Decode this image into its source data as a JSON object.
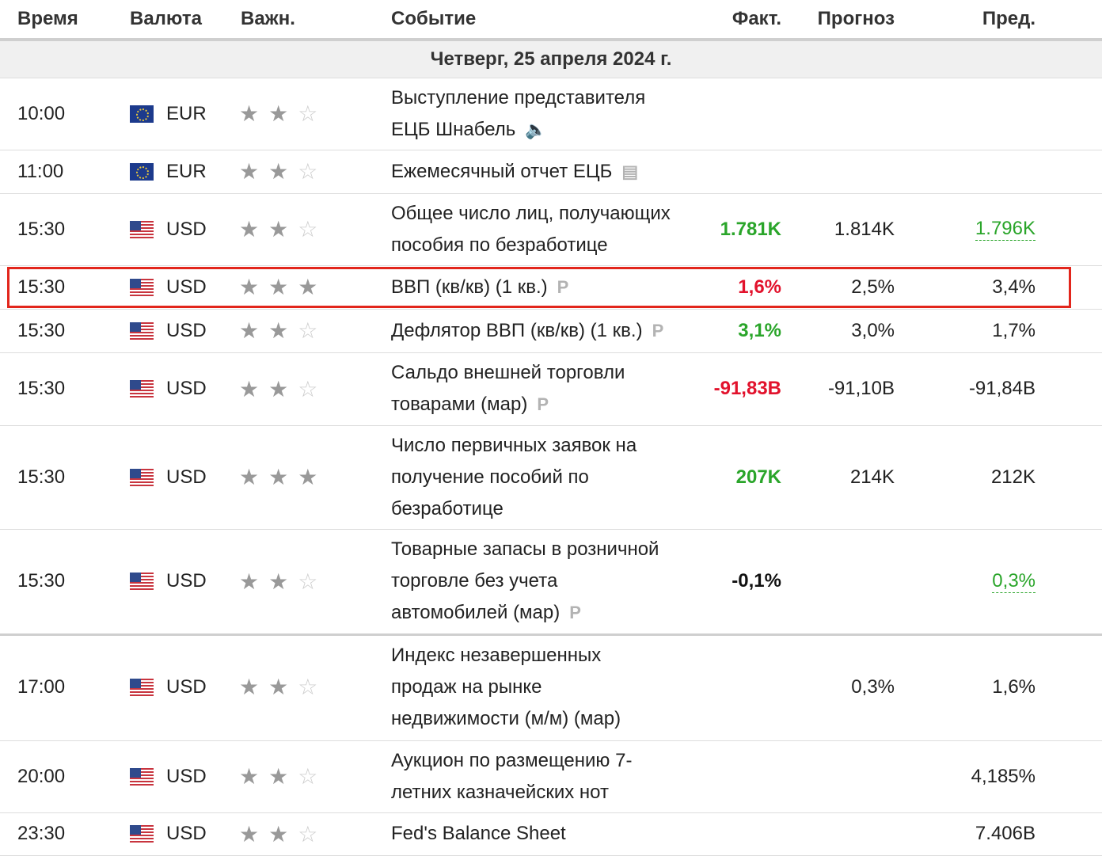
{
  "header": {
    "time": "Время",
    "currency": "Валюта",
    "importance": "Важн.",
    "event": "Событие",
    "actual": "Факт.",
    "forecast": "Прогноз",
    "previous": "Пред."
  },
  "date_label": "Четверг, 25 апреля 2024 г.",
  "rows": [
    {
      "time": "10:00",
      "currency": "EUR",
      "flag": "eu-flag",
      "stars": 2,
      "event_lines": [
        "Выступление представителя",
        "ЕЦБ Шнабель"
      ],
      "event_icon": "speaker-icon",
      "actual": "",
      "forecast": "",
      "previous": ""
    },
    {
      "time": "11:00",
      "currency": "EUR",
      "flag": "eu-flag",
      "stars": 2,
      "event_lines": [
        "Ежемесячный отчет ЕЦБ"
      ],
      "event_icon": "report-icon",
      "actual": "",
      "forecast": "",
      "previous": ""
    },
    {
      "time": "15:30",
      "currency": "USD",
      "flag": "us-flag",
      "stars": 2,
      "event_lines": [
        "Общее число лиц, получающих",
        "пособия по безработице"
      ],
      "event_icon": "",
      "actual": "1.781K",
      "actual_color": "#2aa52a",
      "forecast": "1.814K",
      "previous": "1.796K",
      "previous_color": "#2aa52a"
    },
    {
      "time": "15:30",
      "currency": "USD",
      "flag": "us-flag",
      "stars": 3,
      "event_lines": [
        "ВВП (кв/кв) (1 кв.)"
      ],
      "event_icon": "preliminary-icon",
      "actual": "1,6%",
      "actual_color": "#e2122c",
      "forecast": "2,5%",
      "previous": "3,4%"
    },
    {
      "time": "15:30",
      "currency": "USD",
      "flag": "us-flag",
      "stars": 2,
      "event_lines": [
        "Дефлятор ВВП (кв/кв) (1 кв.)"
      ],
      "event_icon": "preliminary-icon",
      "actual": "3,1%",
      "actual_color": "#2aa52a",
      "forecast": "3,0%",
      "previous": "1,7%"
    },
    {
      "time": "15:30",
      "currency": "USD",
      "flag": "us-flag",
      "stars": 2,
      "event_lines": [
        "Сальдо внешней торговли",
        "товарами (мар)"
      ],
      "event_icon": "preliminary-icon",
      "actual": "-91,83B",
      "actual_color": "#e2122c",
      "forecast": "-91,10B",
      "previous": "-91,84B"
    },
    {
      "time": "15:30",
      "currency": "USD",
      "flag": "us-flag",
      "stars": 3,
      "event_lines": [
        "Число первичных заявок на",
        "получение пособий по",
        "безработице"
      ],
      "event_icon": "",
      "actual": "207K",
      "actual_color": "#2aa52a",
      "forecast": "214K",
      "previous": "212K"
    },
    {
      "time": "15:30",
      "currency": "USD",
      "flag": "us-flag",
      "stars": 2,
      "event_lines": [
        "Товарные запасы в розничной",
        "торговле без учета",
        "автомобилей (мар)"
      ],
      "event_icon": "preliminary-icon",
      "actual": "-0,1%",
      "actual_color": "#111111",
      "forecast": "",
      "previous": "0,3%",
      "previous_color": "#2aa52a"
    },
    {
      "time": "17:00",
      "currency": "USD",
      "flag": "us-flag",
      "stars": 2,
      "event_lines": [
        "Индекс незавершенных",
        "продаж на рынке",
        "недвижимости (м/м) (мар)"
      ],
      "event_icon": "",
      "actual": "",
      "forecast": "0,3%",
      "previous": "1,6%"
    },
    {
      "time": "20:00",
      "currency": "USD",
      "flag": "us-flag",
      "stars": 2,
      "event_lines": [
        "Аукцион по размещению 7-",
        "летних казначейских нот"
      ],
      "event_icon": "",
      "actual": "",
      "forecast": "",
      "previous": "4,185%"
    },
    {
      "time": "23:30",
      "currency": "USD",
      "flag": "us-flag",
      "stars": 2,
      "event_lines": [
        "Fed's Balance Sheet"
      ],
      "event_icon": "",
      "actual": "",
      "forecast": "",
      "previous": "7.406B"
    }
  ],
  "highlighted_row_index": 3,
  "colors": {
    "positive": "#2aa52a",
    "negative": "#e2122c",
    "highlight_border": "#e2261c"
  }
}
